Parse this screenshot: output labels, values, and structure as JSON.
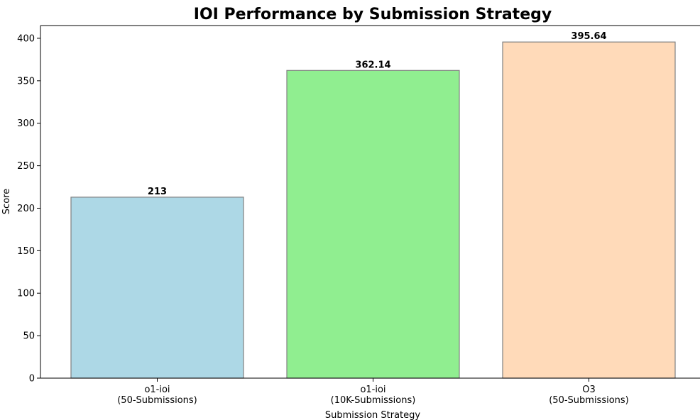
{
  "chart_data": {
    "type": "bar",
    "title": "IOI Performance by Submission Strategy",
    "xlabel": "Submission Strategy",
    "ylabel": "Score",
    "categories": [
      [
        "o1-ioi",
        "(50-Submissions)"
      ],
      [
        "o1-ioi",
        "(10K-Submissions)"
      ],
      [
        "O3",
        "(50-Submissions)"
      ]
    ],
    "values": [
      213,
      362.14,
      395.64
    ],
    "data_labels": [
      "213",
      "362.14",
      "395.64"
    ],
    "colors": [
      "#add8e6",
      "#90ee90",
      "#ffdab9"
    ],
    "bar_edge_color": "#808080",
    "ylim": [
      0,
      415
    ],
    "yticks": [
      0,
      50,
      100,
      150,
      200,
      250,
      300,
      350,
      400
    ],
    "grid": false
  }
}
